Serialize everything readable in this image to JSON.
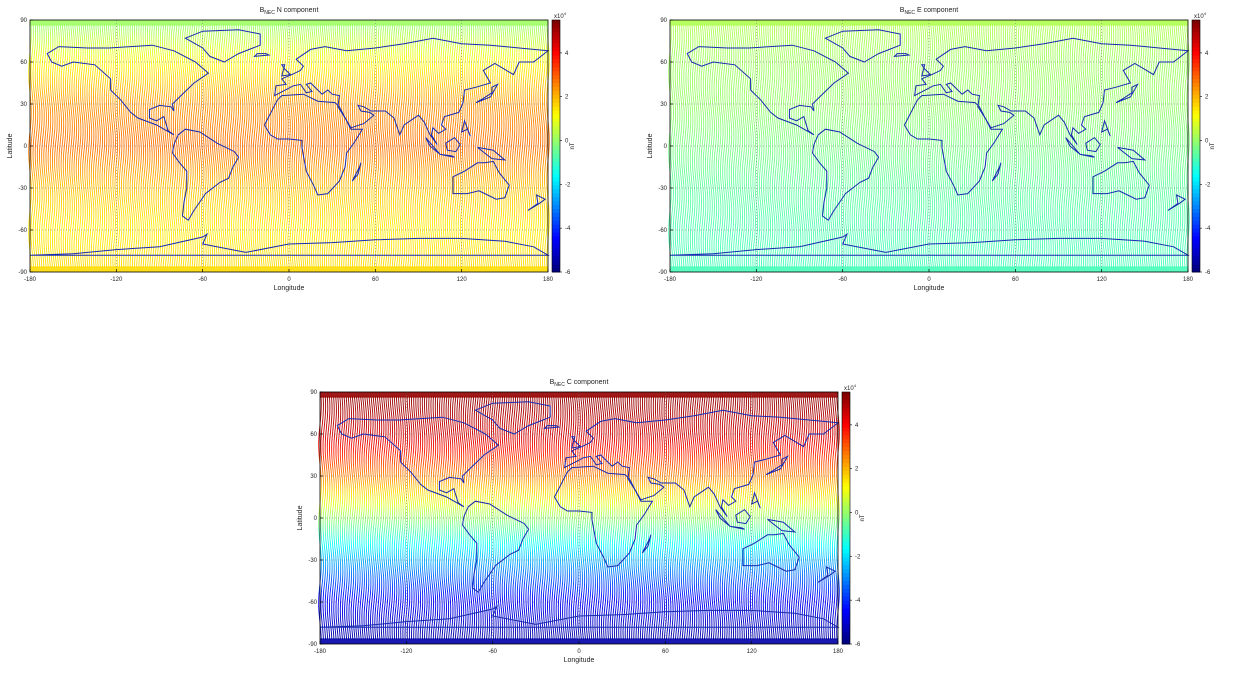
{
  "shared": {
    "xlabel": "Longitude",
    "ylabel": "Latitude",
    "colorbar_unit": "nT",
    "colorbar_exponent": "x10",
    "colorbar_exponent_power": "4",
    "x_ticks": [
      "-180",
      "-120",
      "-60",
      "0",
      "60",
      "120",
      "180"
    ],
    "y_ticks": [
      "90",
      "60",
      "30",
      "0",
      "-30",
      "-60",
      "-90"
    ],
    "colorbar_ticks": [
      "4",
      "2",
      "0",
      "-2",
      "-4",
      "-6"
    ]
  },
  "panels": [
    {
      "title_b": "B",
      "title_sub": "NEC",
      "title_rest": " N component"
    },
    {
      "title_b": "B",
      "title_sub": "NEC",
      "title_rest": " E component"
    },
    {
      "title_b": "B",
      "title_sub": "NEC",
      "title_rest": " C component"
    }
  ],
  "chart_data": [
    {
      "type": "heatmap",
      "title": "B_NEC N component",
      "xlabel": "Longitude",
      "ylabel": "Latitude",
      "xlim": [
        -180,
        180
      ],
      "ylim": [
        -90,
        90
      ],
      "colorbar": {
        "label": "nT",
        "scale": "x10^4",
        "range": [
          -6,
          5.5
        ],
        "ticks": [
          4,
          2,
          0,
          -2,
          -4,
          -6
        ],
        "colormap": "jet"
      },
      "field_profile": {
        "lat": [
          90,
          60,
          30,
          0,
          -30,
          -60,
          -90
        ],
        "value_1e4_nT": [
          0.0,
          1.3,
          2.4,
          2.8,
          1.9,
          1.4,
          1.6
        ]
      },
      "grid": true
    },
    {
      "type": "heatmap",
      "title": "B_NEC E component",
      "xlabel": "Longitude",
      "ylabel": "Latitude",
      "xlim": [
        -180,
        180
      ],
      "ylim": [
        -90,
        90
      ],
      "colorbar": {
        "label": "nT",
        "scale": "x10^4",
        "range": [
          -6,
          5.5
        ],
        "ticks": [
          4,
          2,
          0,
          -2,
          -4,
          -6
        ],
        "colormap": "jet"
      },
      "field_profile": {
        "lat": [
          90,
          60,
          30,
          0,
          -30,
          -60,
          -90
        ],
        "value_1e4_nT": [
          0.3,
          0.1,
          0.0,
          -0.3,
          -0.6,
          -0.8,
          -0.9
        ]
      },
      "grid": true
    },
    {
      "type": "heatmap",
      "title": "B_NEC C component",
      "xlabel": "Longitude",
      "ylabel": "Latitude",
      "xlim": [
        -180,
        180
      ],
      "ylim": [
        -90,
        90
      ],
      "colorbar": {
        "label": "nT",
        "scale": "x10^4",
        "range": [
          -6,
          5.5
        ],
        "ticks": [
          4,
          2,
          0,
          -2,
          -4,
          -6
        ],
        "colormap": "jet"
      },
      "field_profile": {
        "lat": [
          90,
          60,
          30,
          0,
          -30,
          -60,
          -90
        ],
        "value_1e4_nT": [
          5.3,
          4.5,
          2.5,
          0.0,
          -2.5,
          -4.6,
          -5.6
        ]
      },
      "grid": true
    }
  ]
}
